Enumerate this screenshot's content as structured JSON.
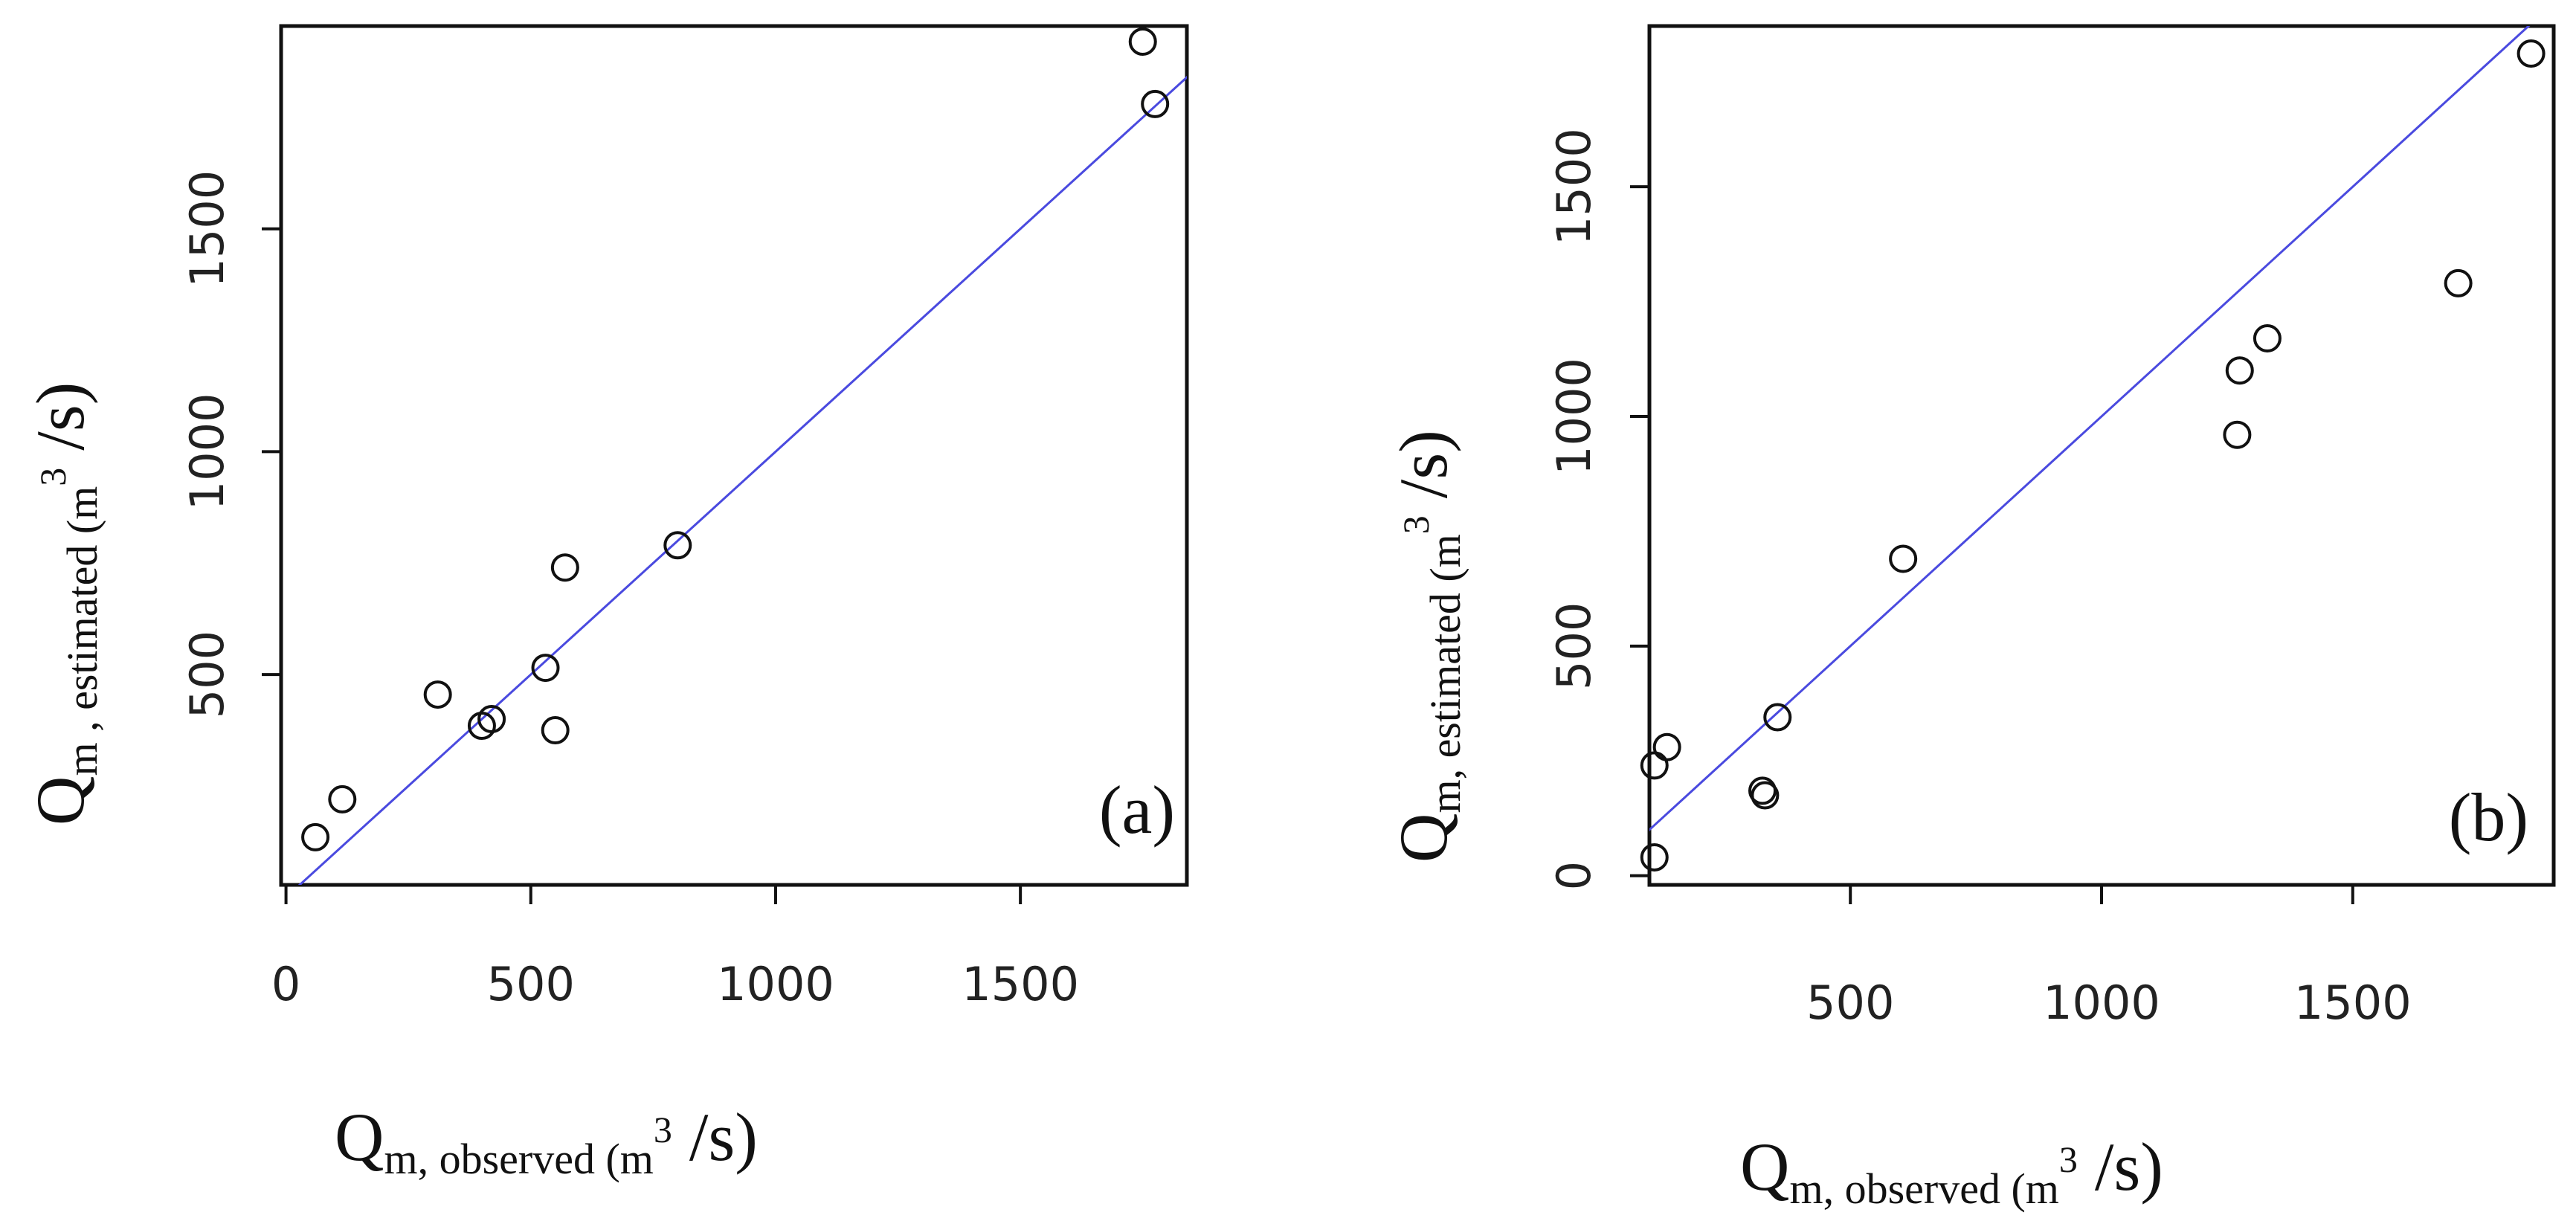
{
  "chart_data": [
    {
      "type": "scatter",
      "panel_label": "(a)",
      "xlabel": {
        "main": "Q",
        "sub": "m, observed",
        "unit_open": " (m",
        "unit_sup": "3",
        "unit_close": " /s)"
      },
      "ylabel": {
        "main": "Q",
        "sub": "m , estimated",
        "unit_open": " (m",
        "unit_sup": "3",
        "unit_close": " /s)"
      },
      "xlim": [
        -10,
        1840
      ],
      "ylim": [
        28,
        1955
      ],
      "xticks": [
        0,
        500,
        1000,
        1500
      ],
      "xtick_labels": [
        "0",
        "500",
        "1000",
        "1500"
      ],
      "yticks": [
        500,
        1000,
        1500
      ],
      "ytick_labels": [
        "500",
        "1000",
        "1500"
      ],
      "reference_line": "1:1",
      "line_color": "#4a4adf",
      "points": [
        {
          "x": 60,
          "y": 135
        },
        {
          "x": 115,
          "y": 220
        },
        {
          "x": 310,
          "y": 455
        },
        {
          "x": 400,
          "y": 385
        },
        {
          "x": 420,
          "y": 400
        },
        {
          "x": 530,
          "y": 515
        },
        {
          "x": 550,
          "y": 375
        },
        {
          "x": 570,
          "y": 740
        },
        {
          "x": 800,
          "y": 790
        },
        {
          "x": 1750,
          "y": 1920
        },
        {
          "x": 1775,
          "y": 1780
        }
      ]
    },
    {
      "type": "scatter",
      "panel_label": "(b)",
      "xlabel": {
        "main": "Q",
        "sub": "m, observed",
        "unit_open": " (m",
        "unit_sup": "3",
        "unit_close": " /s)"
      },
      "ylabel": {
        "main": "Q",
        "sub": "m, estimated",
        "unit_open": " (m",
        "unit_sup": "3",
        "unit_close": " /s)"
      },
      "xlim": [
        100,
        1900
      ],
      "ylim": [
        -20,
        1850
      ],
      "xticks": [
        500,
        1000,
        1500
      ],
      "xtick_labels": [
        "500",
        "1000",
        "1500"
      ],
      "yticks": [
        0,
        500,
        1000,
        1500
      ],
      "ytick_labels": [
        "0",
        "500",
        "1000",
        "1500"
      ],
      "reference_line": "1:1",
      "line_color": "#4a4adf",
      "points": [
        {
          "x": 110,
          "y": 40
        },
        {
          "x": 110,
          "y": 240
        },
        {
          "x": 135,
          "y": 280
        },
        {
          "x": 325,
          "y": 185
        },
        {
          "x": 330,
          "y": 175
        },
        {
          "x": 355,
          "y": 345
        },
        {
          "x": 605,
          "y": 690
        },
        {
          "x": 1270,
          "y": 960
        },
        {
          "x": 1275,
          "y": 1100
        },
        {
          "x": 1330,
          "y": 1170
        },
        {
          "x": 1710,
          "y": 1290
        },
        {
          "x": 1855,
          "y": 1790
        }
      ]
    }
  ]
}
